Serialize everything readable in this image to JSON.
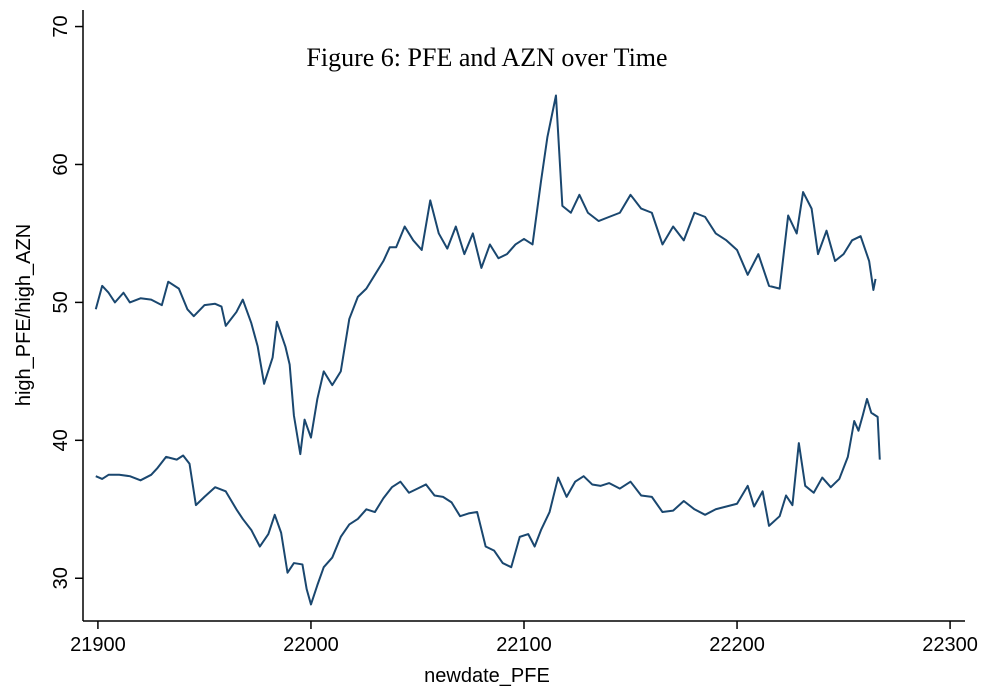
{
  "chart_data": {
    "type": "line",
    "title": "Figure 6: PFE and AZN over Time",
    "x_label": "newdate_PFE",
    "y_label": "high_PFE/high_AZN",
    "xlim": [
      21893,
      22307
    ],
    "xticks": [
      21900,
      22000,
      22100,
      22200,
      22300
    ],
    "ylim": [
      26.9,
      71.2
    ],
    "yticks": [
      30,
      40,
      50,
      60,
      70
    ],
    "grid": false,
    "series": [
      {
        "name": "high_PFE",
        "color": "#1a476f",
        "x": [
          21899,
          21902,
          21905,
          21908,
          21912,
          21915,
          21920,
          21925,
          21930,
          21933,
          21938,
          21942,
          21945,
          21950,
          21955,
          21958,
          21960,
          21965,
          21968,
          21972,
          21975,
          21978,
          21982,
          21984,
          21988,
          21990,
          21992,
          21995,
          21997,
          22000,
          22003,
          22006,
          22010,
          22014,
          22018,
          22022,
          22026,
          22030,
          22034,
          22037,
          22040,
          22044,
          22048,
          22052,
          22056,
          22060,
          22064,
          22068,
          22072,
          22076,
          22080,
          22084,
          22088,
          22092,
          22096,
          22100,
          22104,
          22108,
          22111,
          22115,
          22118,
          22122,
          22126,
          22130,
          22135,
          22140,
          22145,
          22150,
          22155,
          22160,
          22165,
          22170,
          22175,
          22180,
          22185,
          22190,
          22195,
          22200,
          22205,
          22210,
          22215,
          22220,
          22224,
          22228,
          22231,
          22235,
          22238,
          22242,
          22246,
          22250,
          22254,
          22258,
          22262,
          22264,
          22265
        ],
        "values": [
          49.5,
          51.2,
          50.7,
          50.0,
          50.7,
          50.0,
          50.3,
          50.2,
          49.8,
          51.5,
          51.0,
          49.5,
          49.0,
          49.8,
          49.9,
          49.7,
          48.3,
          49.3,
          50.2,
          48.5,
          46.8,
          44.1,
          46.0,
          48.6,
          46.8,
          45.5,
          41.8,
          39.0,
          41.5,
          40.2,
          43.0,
          45.0,
          44.0,
          45.0,
          48.8,
          50.4,
          51.0,
          52.0,
          53.0,
          54.0,
          54.0,
          55.5,
          54.5,
          53.8,
          57.4,
          55.0,
          53.9,
          55.5,
          53.5,
          55.0,
          52.5,
          54.2,
          53.2,
          53.5,
          54.2,
          54.6,
          54.2,
          58.8,
          62.0,
          65.0,
          57.0,
          56.5,
          57.8,
          56.5,
          55.9,
          56.2,
          56.5,
          57.8,
          56.8,
          56.5,
          54.2,
          55.5,
          54.5,
          56.5,
          56.2,
          55.0,
          54.5,
          53.8,
          52.0,
          53.5,
          51.2,
          51.0,
          56.3,
          55.0,
          58.0,
          56.8,
          53.5,
          55.2,
          53.0,
          53.5,
          54.5,
          54.8,
          53.0,
          50.9,
          51.7
        ]
      },
      {
        "name": "high_AZN",
        "color": "#1a476f",
        "x": [
          21899,
          21902,
          21905,
          21910,
          21915,
          21920,
          21925,
          21928,
          21932,
          21937,
          21940,
          21943,
          21946,
          21950,
          21955,
          21960,
          21965,
          21968,
          21972,
          21976,
          21980,
          21983,
          21986,
          21989,
          21992,
          21996,
          21998,
          22000,
          22003,
          22006,
          22010,
          22014,
          22018,
          22022,
          22026,
          22030,
          22034,
          22038,
          22042,
          22046,
          22050,
          22054,
          22058,
          22062,
          22066,
          22070,
          22074,
          22078,
          22082,
          22086,
          22090,
          22094,
          22098,
          22102,
          22105,
          22108,
          22112,
          22116,
          22120,
          22124,
          22128,
          22132,
          22136,
          22140,
          22145,
          22150,
          22155,
          22160,
          22165,
          22170,
          22175,
          22180,
          22185,
          22190,
          22195,
          22200,
          22205,
          22208,
          22212,
          22215,
          22220,
          22223,
          22226,
          22229,
          22232,
          22236,
          22240,
          22244,
          22248,
          22252,
          22255,
          22257,
          22259,
          22261,
          22263,
          22266,
          22267
        ],
        "values": [
          37.4,
          37.2,
          37.5,
          37.5,
          37.4,
          37.1,
          37.5,
          38.0,
          38.8,
          38.6,
          38.9,
          38.3,
          35.3,
          35.9,
          36.6,
          36.3,
          35.0,
          34.3,
          33.5,
          32.3,
          33.2,
          34.6,
          33.3,
          30.4,
          31.1,
          31.0,
          29.2,
          28.1,
          29.5,
          30.8,
          31.5,
          33.0,
          33.9,
          34.3,
          35.0,
          34.8,
          35.8,
          36.6,
          37.0,
          36.2,
          36.5,
          36.8,
          36.0,
          35.9,
          35.5,
          34.5,
          34.7,
          34.8,
          32.3,
          32.0,
          31.1,
          30.8,
          33.0,
          33.2,
          32.3,
          33.5,
          34.8,
          37.3,
          35.9,
          37.0,
          37.4,
          36.8,
          36.7,
          36.9,
          36.5,
          37.0,
          36.0,
          35.9,
          34.8,
          34.9,
          35.6,
          35.0,
          34.6,
          35.0,
          35.2,
          35.4,
          36.7,
          35.2,
          36.3,
          33.8,
          34.5,
          36.0,
          35.3,
          39.8,
          36.7,
          36.2,
          37.3,
          36.6,
          37.2,
          38.8,
          41.4,
          40.7,
          41.8,
          43.0,
          42.0,
          41.7,
          38.6
        ]
      }
    ]
  }
}
